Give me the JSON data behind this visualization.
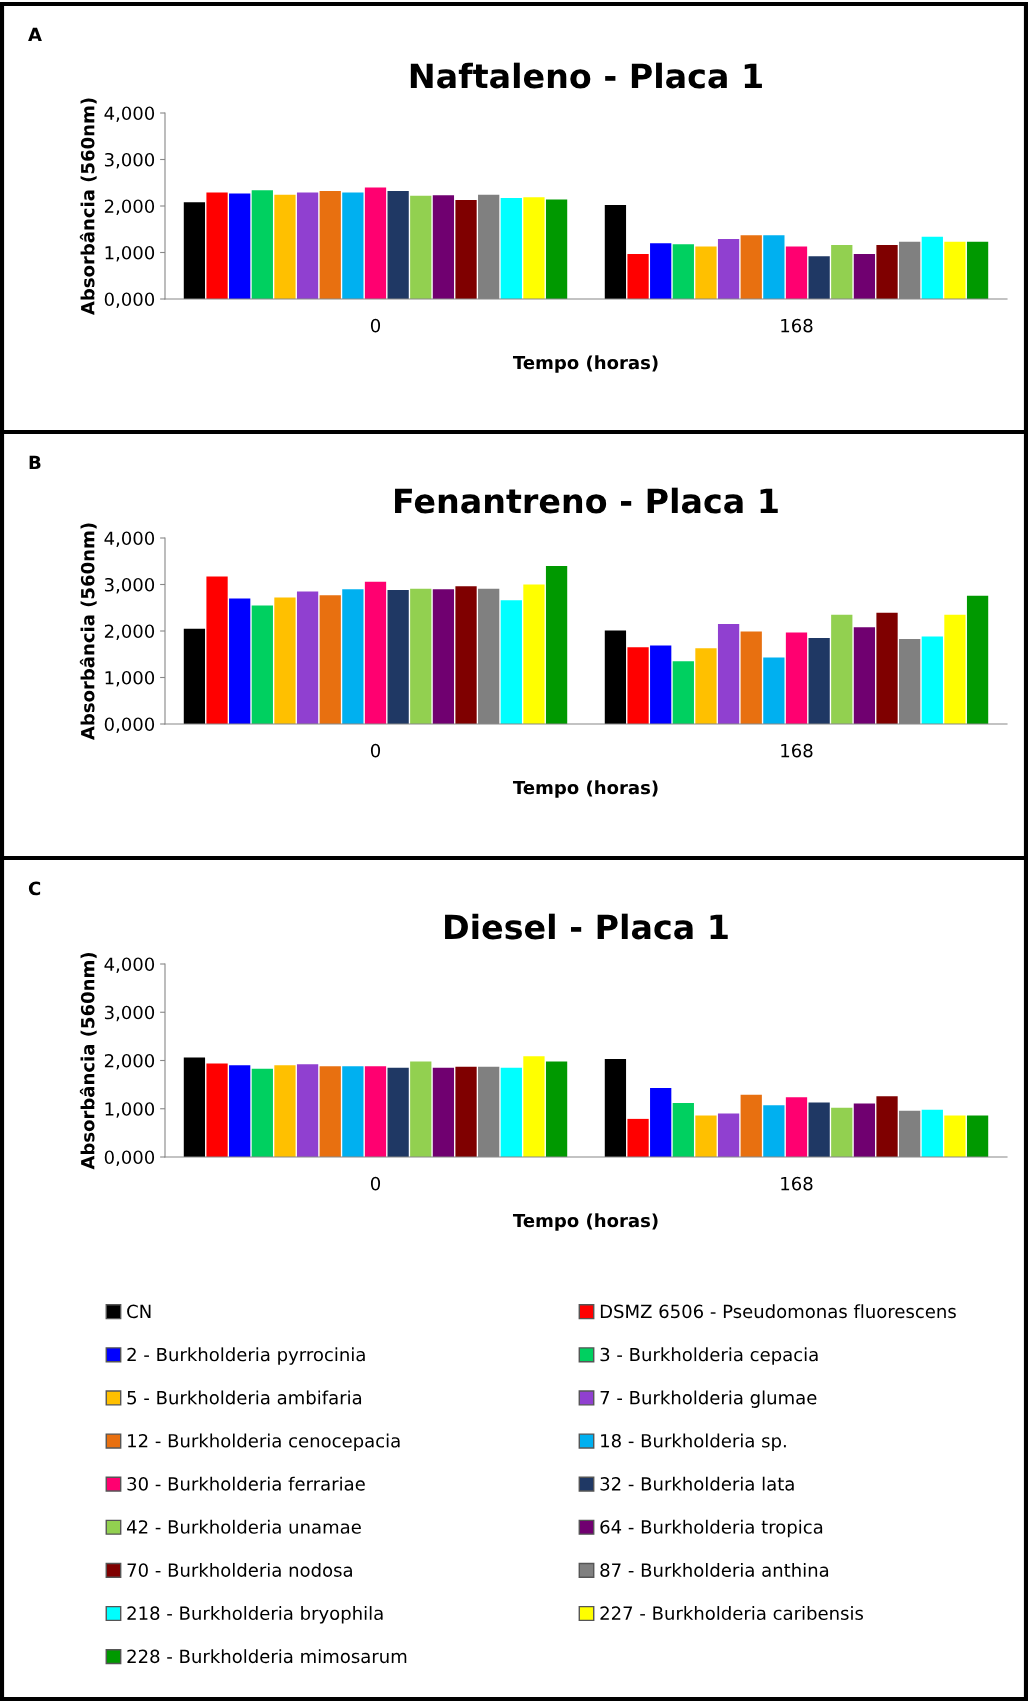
{
  "chart_data": [
    {
      "type": "bar",
      "title": "Naftaleno - Placa 1",
      "xlabel": "Tempo (horas)",
      "ylabel": "Absorbância (560nm)",
      "annotations": [
        "A"
      ],
      "categories": [
        "0",
        "168"
      ],
      "ylim": [
        0,
        4
      ],
      "yticks": [
        {
          "value": 0,
          "label": "0,000"
        },
        {
          "value": 1,
          "label": "1,000"
        },
        {
          "value": 2,
          "label": "2,000"
        },
        {
          "value": 3,
          "label": "3,000"
        },
        {
          "value": 4,
          "label": "4,000"
        }
      ],
      "grid": false,
      "legend": false,
      "series": [
        {
          "color": "#000000",
          "values": [
            2.08,
            2.02
          ]
        },
        {
          "color": "#ff0000",
          "values": [
            2.29,
            0.97
          ]
        },
        {
          "color": "#0000ff",
          "values": [
            2.27,
            1.2
          ]
        },
        {
          "color": "#00d060",
          "values": [
            2.34,
            1.18
          ]
        },
        {
          "color": "#ffc000",
          "values": [
            2.24,
            1.13
          ]
        },
        {
          "color": "#9040d0",
          "values": [
            2.29,
            1.29
          ]
        },
        {
          "color": "#e87010",
          "values": [
            2.32,
            1.37
          ]
        },
        {
          "color": "#00b0f0",
          "values": [
            2.29,
            1.37
          ]
        },
        {
          "color": "#ff0070",
          "values": [
            2.4,
            1.13
          ]
        },
        {
          "color": "#1f3864",
          "values": [
            2.32,
            0.92
          ]
        },
        {
          "color": "#92d050",
          "values": [
            2.22,
            1.16
          ]
        },
        {
          "color": "#700070",
          "values": [
            2.23,
            0.97
          ]
        },
        {
          "color": "#7f0000",
          "values": [
            2.13,
            1.16
          ]
        },
        {
          "color": "#808080",
          "values": [
            2.24,
            1.23
          ]
        },
        {
          "color": "#00ffff",
          "values": [
            2.17,
            1.34
          ]
        },
        {
          "color": "#ffff00",
          "values": [
            2.19,
            1.23
          ]
        },
        {
          "color": "#009900",
          "values": [
            2.14,
            1.23
          ]
        }
      ]
    },
    {
      "type": "bar",
      "title": "Fenantreno - Placa 1",
      "xlabel": "Tempo (horas)",
      "ylabel": "Absorbância (560nm)",
      "annotations": [
        "B"
      ],
      "categories": [
        "0",
        "168"
      ],
      "ylim": [
        0,
        4
      ],
      "yticks": [
        {
          "value": 0,
          "label": "0,000"
        },
        {
          "value": 1,
          "label": "1,000"
        },
        {
          "value": 2,
          "label": "2,000"
        },
        {
          "value": 3,
          "label": "3,000"
        },
        {
          "value": 4,
          "label": "4,000"
        }
      ],
      "grid": false,
      "legend": false,
      "series": [
        {
          "color": "#000000",
          "values": [
            2.05,
            2.01
          ]
        },
        {
          "color": "#ff0000",
          "values": [
            3.17,
            1.65
          ]
        },
        {
          "color": "#0000ff",
          "values": [
            2.7,
            1.69
          ]
        },
        {
          "color": "#00d060",
          "values": [
            2.55,
            1.35
          ]
        },
        {
          "color": "#ffc000",
          "values": [
            2.72,
            1.63
          ]
        },
        {
          "color": "#9040d0",
          "values": [
            2.85,
            2.15
          ]
        },
        {
          "color": "#e87010",
          "values": [
            2.77,
            1.99
          ]
        },
        {
          "color": "#00b0f0",
          "values": [
            2.9,
            1.43
          ]
        },
        {
          "color": "#ff0070",
          "values": [
            3.06,
            1.97
          ]
        },
        {
          "color": "#1f3864",
          "values": [
            2.88,
            1.85
          ]
        },
        {
          "color": "#92d050",
          "values": [
            2.91,
            2.35
          ]
        },
        {
          "color": "#700070",
          "values": [
            2.9,
            2.08
          ]
        },
        {
          "color": "#7f0000",
          "values": [
            2.96,
            2.39
          ]
        },
        {
          "color": "#808080",
          "values": [
            2.91,
            1.83
          ]
        },
        {
          "color": "#00ffff",
          "values": [
            2.66,
            1.88
          ]
        },
        {
          "color": "#ffff00",
          "values": [
            3.0,
            2.35
          ]
        },
        {
          "color": "#009900",
          "values": [
            3.4,
            2.76
          ]
        }
      ]
    },
    {
      "type": "bar",
      "title": "Diesel - Placa 1",
      "xlabel": "Tempo (horas)",
      "ylabel": "Absorbância (560nm)",
      "annotations": [
        "C"
      ],
      "categories": [
        "0",
        "168"
      ],
      "ylim": [
        0,
        4
      ],
      "yticks": [
        {
          "value": 0,
          "label": "0,000"
        },
        {
          "value": 1,
          "label": "1,000"
        },
        {
          "value": 2,
          "label": "2,000"
        },
        {
          "value": 3,
          "label": "3,000"
        },
        {
          "value": 4,
          "label": "4,000"
        }
      ],
      "grid": false,
      "legend": "bottom",
      "series": [
        {
          "name": "CN",
          "color": "#000000",
          "values": [
            2.06,
            2.03
          ]
        },
        {
          "name": "DSMZ 6506 - Pseudomonas fluorescens",
          "color": "#ff0000",
          "values": [
            1.94,
            0.79
          ]
        },
        {
          "name": "2 - Burkholderia pyrrocinia",
          "color": "#0000ff",
          "values": [
            1.9,
            1.43
          ]
        },
        {
          "name": "3 - Burkholderia cepacia",
          "color": "#00d060",
          "values": [
            1.83,
            1.12
          ]
        },
        {
          "name": "5 - Burkholderia ambifaria",
          "color": "#ffc000",
          "values": [
            1.9,
            0.86
          ]
        },
        {
          "name": "7 - Burkholderia glumae",
          "color": "#9040d0",
          "values": [
            1.92,
            0.9
          ]
        },
        {
          "name": "12 - Burkholderia cenocepacia",
          "color": "#e87010",
          "values": [
            1.88,
            1.29
          ]
        },
        {
          "name": "18 - Burkholderia sp.",
          "color": "#00b0f0",
          "values": [
            1.88,
            1.07
          ]
        },
        {
          "name": "30 - Burkholderia ferrariae",
          "color": "#ff0070",
          "values": [
            1.88,
            1.24
          ]
        },
        {
          "name": "32 - Burkholderia lata",
          "color": "#1f3864",
          "values": [
            1.85,
            1.13
          ]
        },
        {
          "name": "42 - Burkholderia unamae",
          "color": "#92d050",
          "values": [
            1.98,
            1.02
          ]
        },
        {
          "name": "64 - Burkholderia tropica",
          "color": "#700070",
          "values": [
            1.85,
            1.11
          ]
        },
        {
          "name": "70 - Burkholderia nodosa",
          "color": "#7f0000",
          "values": [
            1.87,
            1.26
          ]
        },
        {
          "name": "87 - Burkholderia anthina",
          "color": "#808080",
          "values": [
            1.87,
            0.96
          ]
        },
        {
          "name": "218 - Burkholderia bryophila",
          "color": "#00ffff",
          "values": [
            1.85,
            0.98
          ]
        },
        {
          "name": "227 - Burkholderia caribensis",
          "color": "#ffff00",
          "values": [
            2.09,
            0.86
          ]
        },
        {
          "name": "228 - Burkholderia mimosarum",
          "color": "#009900",
          "values": [
            1.98,
            0.86
          ]
        }
      ]
    }
  ]
}
